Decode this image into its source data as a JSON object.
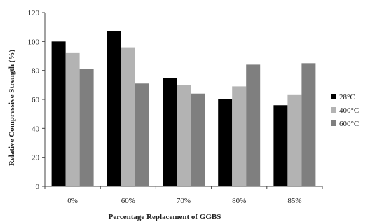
{
  "chart_data": {
    "type": "bar",
    "title": "",
    "xlabel": "Percentage Replacement of GGBS",
    "ylabel": "Relative Compressive Strength (%)",
    "categories": [
      "0%",
      "60%",
      "70%",
      "80%",
      "85%"
    ],
    "ylim": [
      0,
      120
    ],
    "yticks": [
      0,
      20,
      40,
      60,
      80,
      100,
      120
    ],
    "grid": false,
    "legend_position": "right",
    "series": [
      {
        "name": "28°C",
        "color": "#000000",
        "values": [
          100,
          107,
          75,
          60,
          56
        ]
      },
      {
        "name": "400°C",
        "color": "#b3b3b3",
        "values": [
          92,
          96,
          70,
          69,
          63
        ]
      },
      {
        "name": "600°C",
        "color": "#7f7f7f",
        "values": [
          81,
          71,
          64,
          84,
          85
        ]
      }
    ]
  }
}
